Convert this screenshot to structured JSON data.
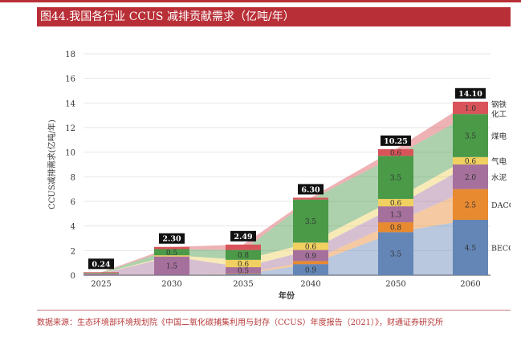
{
  "header": {
    "title": "图44.我国各行业 CCUS 减排贡献需求（亿吨/年）"
  },
  "source_text": "数据来源：生态环境部环境规划院《中国二氧化碳捕集利用与封存（CCUS）年度报告（2021）》，财通证券研究所",
  "colors": {
    "title_bg": "#b92f37",
    "source_text": "#b93a3a"
  },
  "chart_data": {
    "type": "area",
    "stacked": true,
    "xlabel": "年份",
    "ylabel": "CCUS减排需求(亿吨/年)",
    "ylim": [
      0,
      18
    ],
    "yticks": [
      0,
      2,
      4,
      6,
      8,
      10,
      12,
      14,
      16,
      18
    ],
    "categories": [
      "2025",
      "2030",
      "2035",
      "2040",
      "2050",
      "2060"
    ],
    "totals": [
      "0.24",
      "2.30",
      "2.49",
      "6.30",
      "10.25",
      "14.10"
    ],
    "grid": true,
    "legend": "right",
    "series": [
      {
        "name": "BECCS",
        "color": "#6486b6",
        "values": [
          0.02,
          0.02,
          0.1,
          0.9,
          3.5,
          4.5
        ],
        "labels": [
          "",
          "",
          "",
          "0.9",
          "3.5",
          "4.5"
        ]
      },
      {
        "name": "DACCS",
        "color": "#e88a30",
        "values": [
          0.0,
          0.0,
          0.05,
          0.25,
          0.8,
          2.5
        ],
        "labels": [
          "",
          "",
          "",
          "",
          "0.8",
          "2.5"
        ]
      },
      {
        "name": "水泥",
        "color": "#a6709c",
        "values": [
          0.1,
          1.5,
          0.5,
          0.9,
          1.3,
          2.0
        ],
        "labels": [
          "",
          "1.5",
          "0.5",
          "0.9",
          "1.3",
          "2.0"
        ]
      },
      {
        "name": "气电",
        "color": "#f0d060",
        "values": [
          0.02,
          0.1,
          0.6,
          0.6,
          0.6,
          0.6
        ],
        "labels": [
          "",
          "",
          "0.6",
          "0.6",
          "0.6",
          "0.6"
        ]
      },
      {
        "name": "煤电",
        "color": "#4a9a48",
        "values": [
          0.05,
          0.5,
          0.8,
          3.5,
          3.5,
          3.5
        ],
        "labels": [
          "",
          "0.5",
          "0.8",
          "3.5",
          "3.5",
          "3.5"
        ]
      },
      {
        "name": "钢铁化工",
        "color": "#d9545a",
        "values": [
          0.05,
          0.18,
          0.44,
          0.15,
          0.55,
          1.0
        ],
        "labels": [
          "",
          "",
          "",
          "",
          "0.6",
          "1.0"
        ]
      }
    ]
  }
}
